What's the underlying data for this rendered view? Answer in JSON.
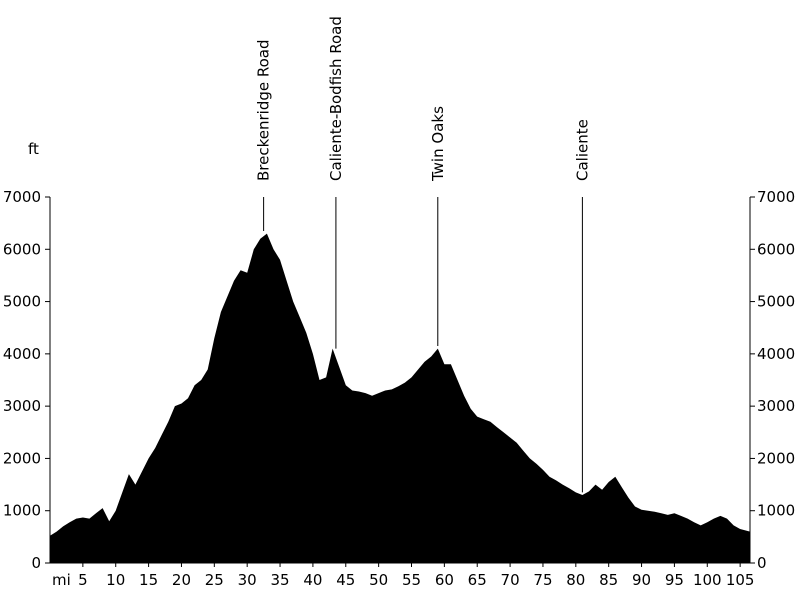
{
  "chart_data": {
    "type": "area",
    "title": "",
    "xlabel": "mi",
    "ylabel": "ft",
    "x_unit": "mi",
    "y_unit": "ft",
    "xlim": [
      0,
      106.5
    ],
    "ylim": [
      0,
      7000
    ],
    "grid": false,
    "x_ticks": [
      5,
      10,
      15,
      20,
      25,
      30,
      35,
      40,
      45,
      50,
      55,
      60,
      65,
      70,
      75,
      80,
      85,
      90,
      95,
      100,
      105
    ],
    "y_ticks": [
      0,
      1000,
      2000,
      3000,
      4000,
      5000,
      6000,
      7000
    ],
    "fill_color": "#000000",
    "x": [
      0,
      1,
      2,
      3,
      4,
      5,
      6,
      7,
      8,
      9,
      10,
      11,
      12,
      13,
      14,
      15,
      16,
      17,
      18,
      19,
      20,
      21,
      22,
      23,
      24,
      25,
      26,
      27,
      28,
      29,
      30,
      31,
      32,
      33,
      34,
      35,
      36,
      37,
      38,
      39,
      40,
      41,
      42,
      43,
      44,
      45,
      46,
      47,
      48,
      49,
      50,
      51,
      52,
      53,
      54,
      55,
      56,
      57,
      58,
      59,
      60,
      61,
      62,
      63,
      64,
      65,
      66,
      67,
      68,
      69,
      70,
      71,
      72,
      73,
      74,
      75,
      76,
      77,
      78,
      79,
      80,
      81,
      82,
      83,
      84,
      85,
      86,
      87,
      88,
      89,
      90,
      91,
      92,
      93,
      94,
      95,
      96,
      97,
      98,
      99,
      100,
      101,
      102,
      103,
      104,
      105,
      106.5
    ],
    "elevation": [
      520,
      600,
      700,
      780,
      850,
      870,
      850,
      950,
      1050,
      800,
      1000,
      1350,
      1700,
      1500,
      1750,
      2000,
      2200,
      2450,
      2700,
      3000,
      3050,
      3150,
      3400,
      3500,
      3700,
      4300,
      4800,
      5100,
      5400,
      5600,
      5550,
      6000,
      6200,
      6300,
      6000,
      5800,
      5400,
      5000,
      4700,
      4400,
      4000,
      3500,
      3550,
      4100,
      3750,
      3400,
      3300,
      3280,
      3250,
      3200,
      3250,
      3300,
      3320,
      3380,
      3450,
      3550,
      3700,
      3850,
      3950,
      4100,
      3800,
      3800,
      3500,
      3200,
      2950,
      2800,
      2750,
      2700,
      2600,
      2500,
      2400,
      2300,
      2150,
      2000,
      1900,
      1780,
      1650,
      1580,
      1500,
      1430,
      1350,
      1300,
      1370,
      1500,
      1400,
      1550,
      1650,
      1450,
      1250,
      1080,
      1020,
      1000,
      980,
      950,
      920,
      950,
      900,
      850,
      780,
      720,
      780,
      850,
      900,
      850,
      720,
      650,
      600
    ],
    "waypoints": [
      {
        "name": "Breckenridge Road",
        "mile": 32.5,
        "elevation": 6350
      },
      {
        "name": "Caliente-Bodfish Road",
        "mile": 43.5,
        "elevation": 4100
      },
      {
        "name": "Twin Oaks",
        "mile": 59,
        "elevation": 4150
      },
      {
        "name": "Caliente",
        "mile": 81,
        "elevation": 1350
      }
    ]
  }
}
